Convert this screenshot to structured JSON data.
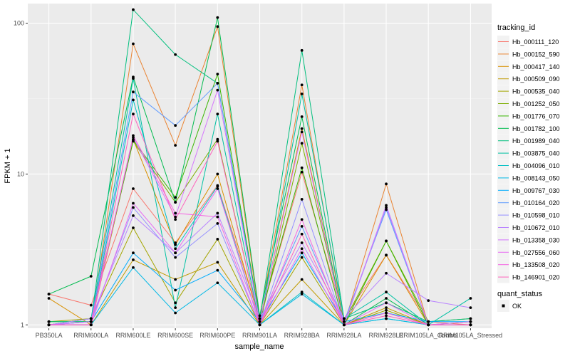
{
  "chart_data": {
    "type": "line",
    "xlabel": "sample_name",
    "ylabel": "FPKM + 1",
    "y_scale": "log10",
    "ylim": [
      0.95,
      135
    ],
    "y_ticks": [
      {
        "value": 1,
        "label": "1"
      },
      {
        "value": 10,
        "label": "10"
      },
      {
        "value": 100,
        "label": "100"
      }
    ],
    "categories": [
      "PB350LA",
      "RRIM600LA",
      "RRIM600LE",
      "RRIM600SE",
      "RRIM600PE",
      "RRIM901LA",
      "RRIM928BA",
      "RRIM928LA",
      "RRIM928LE",
      "RRIM105LA_Control",
      "RRIM105LA_Stressed"
    ],
    "legend_title": "tracking_id",
    "shape_legend_title": "quant_status",
    "shape_legend_items": [
      "OK"
    ],
    "series": [
      {
        "name": "Hb_000111_120",
        "color": "#F8766D",
        "values": [
          1.6,
          1.35,
          8.0,
          3.5,
          8.4,
          1.1,
          10.3,
          1.1,
          2.9,
          1.05,
          1.0
        ]
      },
      {
        "name": "Hb_000152_590",
        "color": "#EA8331",
        "values": [
          1.0,
          1.0,
          73.0,
          15.5,
          95.0,
          1.1,
          39.0,
          1.0,
          8.6,
          1.0,
          1.0
        ]
      },
      {
        "name": "Hb_000417_140",
        "color": "#D89000",
        "values": [
          1.5,
          1.0,
          17.0,
          3.4,
          10.0,
          1.05,
          20.0,
          1.0,
          2.9,
          1.0,
          1.0
        ]
      },
      {
        "name": "Hb_000509_090",
        "color": "#C09B00",
        "values": [
          1.0,
          1.0,
          2.7,
          2.0,
          2.6,
          1.0,
          2.0,
          1.0,
          1.3,
          1.0,
          1.0
        ]
      },
      {
        "name": "Hb_000535_040",
        "color": "#A3A500",
        "values": [
          1.05,
          1.1,
          4.4,
          1.4,
          3.7,
          1.0,
          2.8,
          1.0,
          1.25,
          1.0,
          1.0
        ]
      },
      {
        "name": "Hb_001252_050",
        "color": "#7CAE00",
        "values": [
          1.0,
          1.1,
          16.5,
          6.5,
          17.0,
          1.0,
          16.0,
          1.05,
          3.6,
          1.05,
          1.1
        ]
      },
      {
        "name": "Hb_001776_070",
        "color": "#39B600",
        "values": [
          1.05,
          1.05,
          16.8,
          7.0,
          46.0,
          1.1,
          11.0,
          1.0,
          3.6,
          1.0,
          1.0
        ]
      },
      {
        "name": "Hb_001782_100",
        "color": "#00BB4E",
        "values": [
          1.6,
          2.1,
          44.0,
          6.5,
          109.0,
          1.15,
          24.0,
          1.0,
          1.5,
          1.0,
          1.05
        ]
      },
      {
        "name": "Hb_001989_040",
        "color": "#00BF7D",
        "values": [
          1.05,
          1.05,
          123.0,
          62.0,
          40.0,
          1.1,
          66.0,
          1.1,
          1.4,
          1.05,
          1.1
        ]
      },
      {
        "name": "Hb_003875_040",
        "color": "#00C1A3",
        "values": [
          1.0,
          1.1,
          43.0,
          1.3,
          25.0,
          1.0,
          34.0,
          1.1,
          1.65,
          1.0,
          1.5
        ]
      },
      {
        "name": "Hb_004096_010",
        "color": "#00BFC4",
        "values": [
          1.0,
          1.0,
          31.0,
          3.2,
          8.3,
          1.0,
          1.65,
          1.0,
          1.1,
          1.0,
          1.0
        ]
      },
      {
        "name": "Hb_008143_050",
        "color": "#00B8E5",
        "values": [
          1.0,
          1.0,
          2.4,
          1.2,
          1.9,
          1.0,
          1.6,
          1.0,
          1.1,
          1.0,
          1.0
        ]
      },
      {
        "name": "Hb_009767_030",
        "color": "#00ABFD",
        "values": [
          1.0,
          1.05,
          3.0,
          1.7,
          2.3,
          1.05,
          3.0,
          1.05,
          1.2,
          1.05,
          1.05
        ]
      },
      {
        "name": "Hb_010164_020",
        "color": "#619CFF",
        "values": [
          1.0,
          1.05,
          35.0,
          21.0,
          40.0,
          1.05,
          4.5,
          1.05,
          5.8,
          1.0,
          1.0
        ]
      },
      {
        "name": "Hb_010598_010",
        "color": "#9590FF",
        "values": [
          1.0,
          1.05,
          6.0,
          2.8,
          4.7,
          1.0,
          6.8,
          1.0,
          6.0,
          1.0,
          1.0
        ]
      },
      {
        "name": "Hb_010672_010",
        "color": "#B983FF",
        "values": [
          1.0,
          1.1,
          5.3,
          3.0,
          5.5,
          1.1,
          3.5,
          1.1,
          2.2,
          1.45,
          1.3
        ]
      },
      {
        "name": "Hb_013358_030",
        "color": "#D575FE",
        "values": [
          1.0,
          1.05,
          17.5,
          5.2,
          36.0,
          1.05,
          19.0,
          1.0,
          6.2,
          1.0,
          1.0
        ]
      },
      {
        "name": "Hb_027556_060",
        "color": "#E76BF3",
        "values": [
          1.0,
          1.0,
          6.4,
          3.0,
          8.0,
          1.0,
          3.2,
          1.0,
          1.4,
          1.0,
          1.05
        ]
      },
      {
        "name": "Hb_133508_020",
        "color": "#F564E3",
        "values": [
          1.0,
          1.0,
          18.0,
          5.5,
          5.2,
          1.0,
          5.0,
          1.0,
          1.2,
          1.0,
          1.0
        ]
      },
      {
        "name": "Hb_146901_020",
        "color": "#FF62BC",
        "values": [
          1.0,
          1.0,
          25.0,
          5.0,
          16.5,
          1.0,
          4.0,
          1.0,
          1.15,
          1.0,
          1.0
        ]
      }
    ]
  }
}
